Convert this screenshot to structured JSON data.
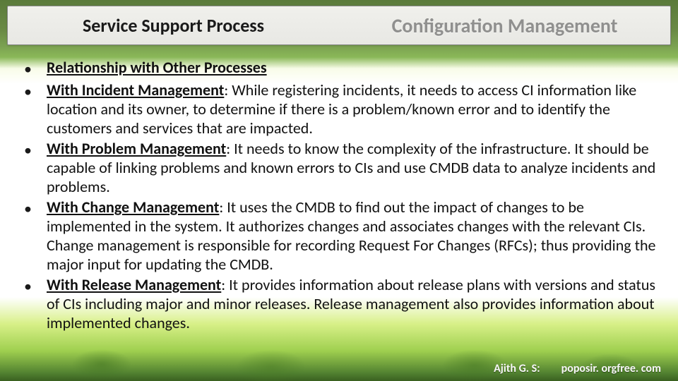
{
  "header": {
    "left": "Service Support Process",
    "right": "Configuration Management"
  },
  "bullets": [
    {
      "lead_ul": "Relationship with Other Processes",
      "rest": ""
    },
    {
      "lead_ul": "With Incident Management",
      "rest": ": While registering incidents, it needs to access CI information like location and its owner, to determine if there is a problem/known error and to identify the customers and services that are impacted."
    },
    {
      "lead_ul": "With Problem Management",
      "rest": ": It needs to know the complexity of the infrastructure. It should be capable of linking problems and known errors to CIs and use CMDB data to analyze incidents and problems."
    },
    {
      "lead_ul": "With Change Management",
      "rest": ": It uses the CMDB to find out the impact of changes to be implemented in the system. It authorizes changes and associates changes with the relevant CIs. Change management is responsible for recording Request For Changes (RFCs); thus providing the major input for updating the CMDB."
    },
    {
      "lead_ul": "With Release Management",
      "rest": ": It provides information about release plans with versions and status of CIs including major and minor releases. Release management also provides information about implemented changes."
    }
  ],
  "footer": {
    "author": "Ajith G. S:",
    "site": "poposir. orgfree. com"
  },
  "style": {
    "slide_w": 960,
    "slide_h": 540,
    "body_fontsize": 22,
    "body_lineheight": 27,
    "header_left_fontsize": 26,
    "header_right_fontsize": 28,
    "footer_fontsize": 16,
    "text_color": "#111111",
    "header_right_color": "rgba(60,60,60,0.55)"
  }
}
